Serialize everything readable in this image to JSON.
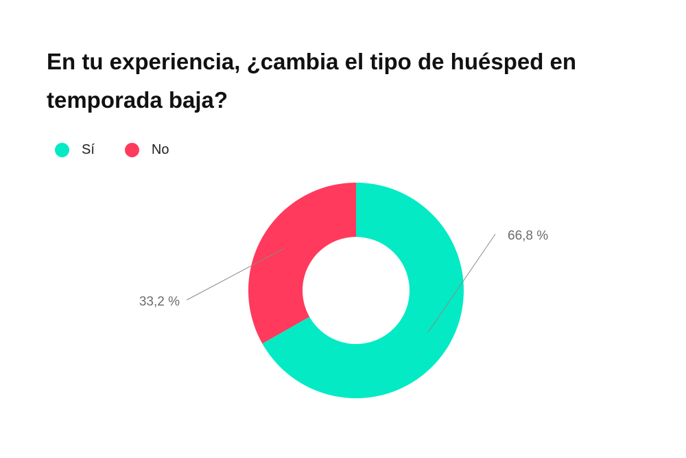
{
  "chart_data": {
    "type": "pie",
    "title": "En tu experiencia, ¿cambia el tipo de huésped en temporada baja?",
    "categories": [
      "Sí",
      "No"
    ],
    "values": [
      66.8,
      33.2
    ],
    "data_labels": [
      "66,8 %",
      "33,2 %"
    ],
    "colors": [
      "#03EAC4",
      "#FF3A5C"
    ],
    "donut": true,
    "legend_position": "top-left"
  }
}
